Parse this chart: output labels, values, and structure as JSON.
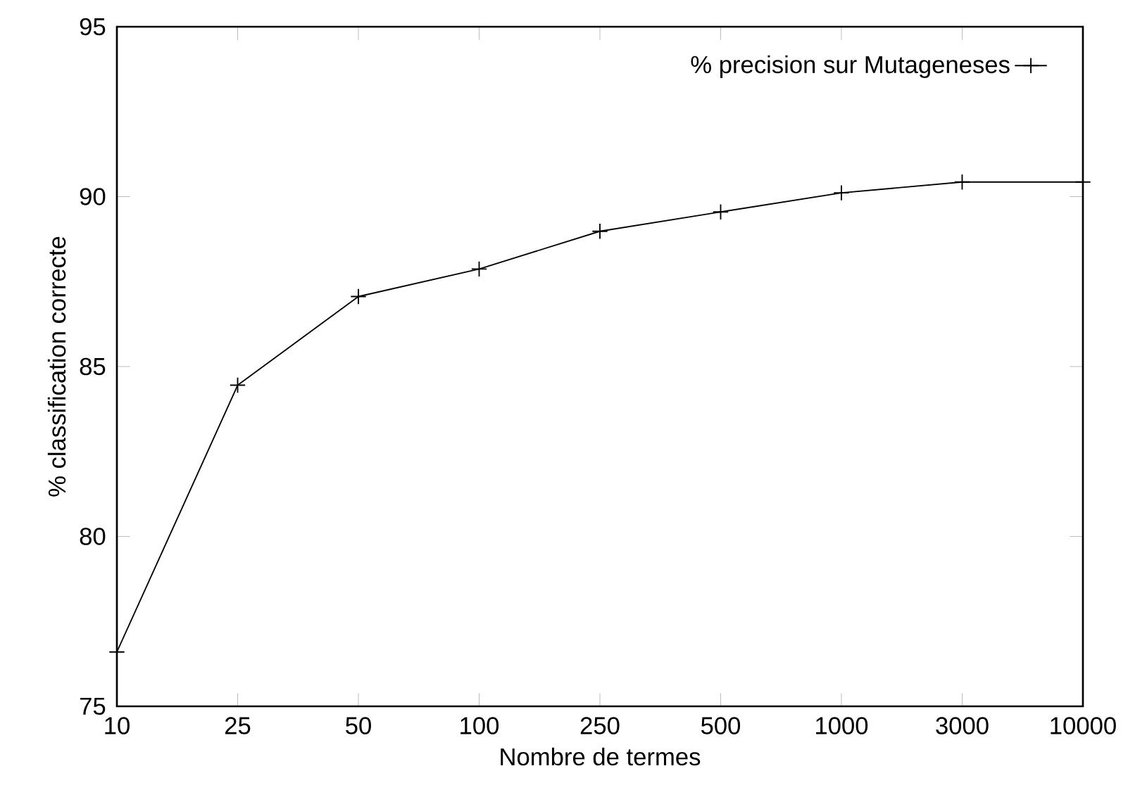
{
  "chart_data": {
    "type": "line",
    "xlabel": "Nombre de termes",
    "ylabel": "% classification correcte",
    "categories": [
      "10",
      "25",
      "50",
      "100",
      "250",
      "500",
      "1000",
      "3000",
      "10000"
    ],
    "series": [
      {
        "name": "% precision sur Mutageneses",
        "color": "#000000",
        "values": [
          76.6,
          84.45,
          87.06,
          87.87,
          88.98,
          89.55,
          90.11,
          90.43,
          90.43
        ]
      }
    ],
    "ylim": [
      75,
      95
    ],
    "yticks": [
      75,
      80,
      85,
      90,
      95
    ],
    "legend": "top right",
    "marker": "cross",
    "line_style": "solid"
  }
}
